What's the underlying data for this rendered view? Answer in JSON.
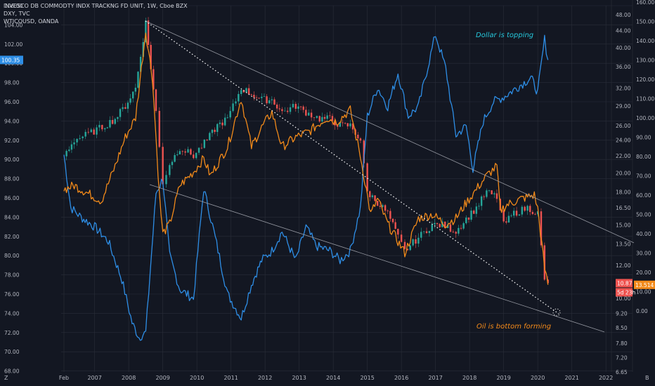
{
  "legend": {
    "line1": "INVESCO DB COMMODTY INDX TRACKNG FD UNIT, 1W, Cboe BZX",
    "line2": "DXY, TVC",
    "line3": "WTICOUSD, OANDA"
  },
  "colors": {
    "background": "#131722",
    "grid": "#2a2e39",
    "dxy": "#2e8ee6",
    "oil": "#f28a1a",
    "candle_up": "#26a69a",
    "candle_down": "#ef5350",
    "trendline": "#9598a1",
    "dotted": "#ffffff",
    "dollar_text": "#26c6da",
    "oil_text": "#f28a1a"
  },
  "annotations": {
    "dollar": "Dollar is topping",
    "oil": "Oil is bottom forming"
  },
  "axes": {
    "left_ticks": [
      "106.00",
      "104.00",
      "102.00",
      "100.00",
      "98.00",
      "96.00",
      "94.00",
      "92.00",
      "90.00",
      "88.00",
      "86.00",
      "84.00",
      "82.00",
      "80.00",
      "78.00",
      "76.00",
      "74.00",
      "72.00",
      "70.00",
      "68.00"
    ],
    "mid_ticks": [
      "48.00",
      "44.00",
      "40.00",
      "36.00",
      "32.00",
      "29.00",
      "26.00",
      "24.00",
      "22.00",
      "20.00",
      "18.00",
      "16.50",
      "15.00",
      "13.50",
      "12.00",
      "11.00",
      "10.00",
      "9.20",
      "8.50",
      "7.80",
      "7.20",
      "6.65"
    ],
    "right_ticks": [
      "160.00",
      "150.00",
      "140.00",
      "130.00",
      "120.00",
      "110.00",
      "100.00",
      "90.00",
      "80.00",
      "70.00",
      "60.00",
      "50.00",
      "40.00",
      "30.00",
      "20.00",
      "10.00",
      "0.00"
    ],
    "x_ticks": [
      "Feb",
      "2007",
      "2008",
      "2009",
      "2010",
      "2011",
      "2012",
      "2013",
      "2014",
      "2015",
      "2016",
      "2017",
      "2018",
      "2019",
      "2020",
      "2021",
      "2022"
    ],
    "corner_left": "Z",
    "corner_right": "B"
  },
  "badges": {
    "dxy_last": "100.35",
    "dbc_last": "10.87",
    "dbc_countdown": "5d 23h",
    "oil_last": "13.514"
  },
  "chart_data": [
    {
      "type": "line",
      "title": "DXY, TVC",
      "axis": "left",
      "x": [
        2006.1,
        2006.3,
        2006.6,
        2007.0,
        2007.4,
        2007.8,
        2008.1,
        2008.3,
        2008.5,
        2008.8,
        2009.0,
        2009.2,
        2009.5,
        2009.9,
        2010.2,
        2010.5,
        2010.9,
        2011.3,
        2011.6,
        2011.9,
        2012.2,
        2012.5,
        2012.9,
        2013.2,
        2013.5,
        2013.9,
        2014.2,
        2014.5,
        2014.8,
        2015.0,
        2015.3,
        2015.6,
        2015.9,
        2016.2,
        2016.5,
        2016.9,
        2017.0,
        2017.3,
        2017.6,
        2017.9,
        2018.1,
        2018.4,
        2018.7,
        2019.0,
        2019.4,
        2019.8,
        2020.0,
        2020.2,
        2020.3
      ],
      "values": [
        90.5,
        85.0,
        84.0,
        83.0,
        81.5,
        77.5,
        73.0,
        71.5,
        72.0,
        86.5,
        88.0,
        80.0,
        76.5,
        75.5,
        87.0,
        82.5,
        76.0,
        73.5,
        77.0,
        79.5,
        80.5,
        82.5,
        79.5,
        83.0,
        81.0,
        80.5,
        79.5,
        80.5,
        85.0,
        94.5,
        97.5,
        95.5,
        99.0,
        94.5,
        95.5,
        101.5,
        103.0,
        99.5,
        92.5,
        93.5,
        89.0,
        94.0,
        96.0,
        96.5,
        97.5,
        98.5,
        97.0,
        102.5,
        100.35
      ]
    },
    {
      "type": "line",
      "title": "WTICOUSD, OANDA",
      "axis": "right",
      "x": [
        2006.1,
        2006.4,
        2006.9,
        2007.2,
        2007.6,
        2007.9,
        2008.2,
        2008.5,
        2008.7,
        2008.9,
        2009.0,
        2009.2,
        2009.5,
        2009.9,
        2010.2,
        2010.4,
        2010.9,
        2011.3,
        2011.6,
        2011.9,
        2012.2,
        2012.5,
        2012.9,
        2013.3,
        2013.8,
        2014.1,
        2014.5,
        2014.8,
        2015.1,
        2015.3,
        2015.6,
        2015.9,
        2016.1,
        2016.5,
        2016.9,
        2017.3,
        2017.6,
        2017.9,
        2018.2,
        2018.5,
        2018.8,
        2018.9,
        2019.1,
        2019.5,
        2019.9,
        2020.0,
        2020.2,
        2020.3
      ],
      "values": [
        63,
        65,
        60,
        57,
        75,
        90,
        100,
        145,
        120,
        60,
        40,
        45,
        65,
        72,
        79,
        70,
        85,
        110,
        85,
        95,
        103,
        85,
        90,
        93,
        100,
        98,
        104,
        80,
        50,
        58,
        45,
        36,
        30,
        48,
        50,
        45,
        48,
        56,
        63,
        70,
        75,
        52,
        55,
        58,
        60,
        53,
        22,
        13.514
      ]
    },
    {
      "type": "line",
      "title": "INVESCO DB COMMODTY INDX TRACKNG FD UNIT, 1W, Cboe BZX",
      "axis": "mid",
      "x": [
        2006.1,
        2006.4,
        2006.9,
        2007.3,
        2007.6,
        2007.9,
        2008.2,
        2008.5,
        2008.8,
        2009.0,
        2009.2,
        2009.5,
        2009.9,
        2010.3,
        2010.6,
        2010.9,
        2011.3,
        2011.6,
        2011.9,
        2012.2,
        2012.5,
        2012.9,
        2013.2,
        2013.6,
        2013.9,
        2014.2,
        2014.5,
        2014.8,
        2015.0,
        2015.3,
        2015.6,
        2015.9,
        2016.1,
        2016.5,
        2016.9,
        2017.2,
        2017.6,
        2017.9,
        2018.2,
        2018.5,
        2018.8,
        2019.0,
        2019.3,
        2019.7,
        2020.0,
        2020.2,
        2020.3
      ],
      "values": [
        22,
        24,
        25,
        26,
        27,
        29,
        32,
        46,
        28,
        19,
        21,
        23,
        22,
        24,
        26,
        27,
        32,
        31,
        30,
        30,
        28,
        29,
        28,
        27,
        27,
        26,
        26,
        24,
        18,
        17,
        16,
        14,
        13,
        14,
        15,
        15,
        14.5,
        15.5,
        16.5,
        18,
        17.5,
        15,
        16,
        16.5,
        16,
        11,
        10.87
      ]
    }
  ]
}
